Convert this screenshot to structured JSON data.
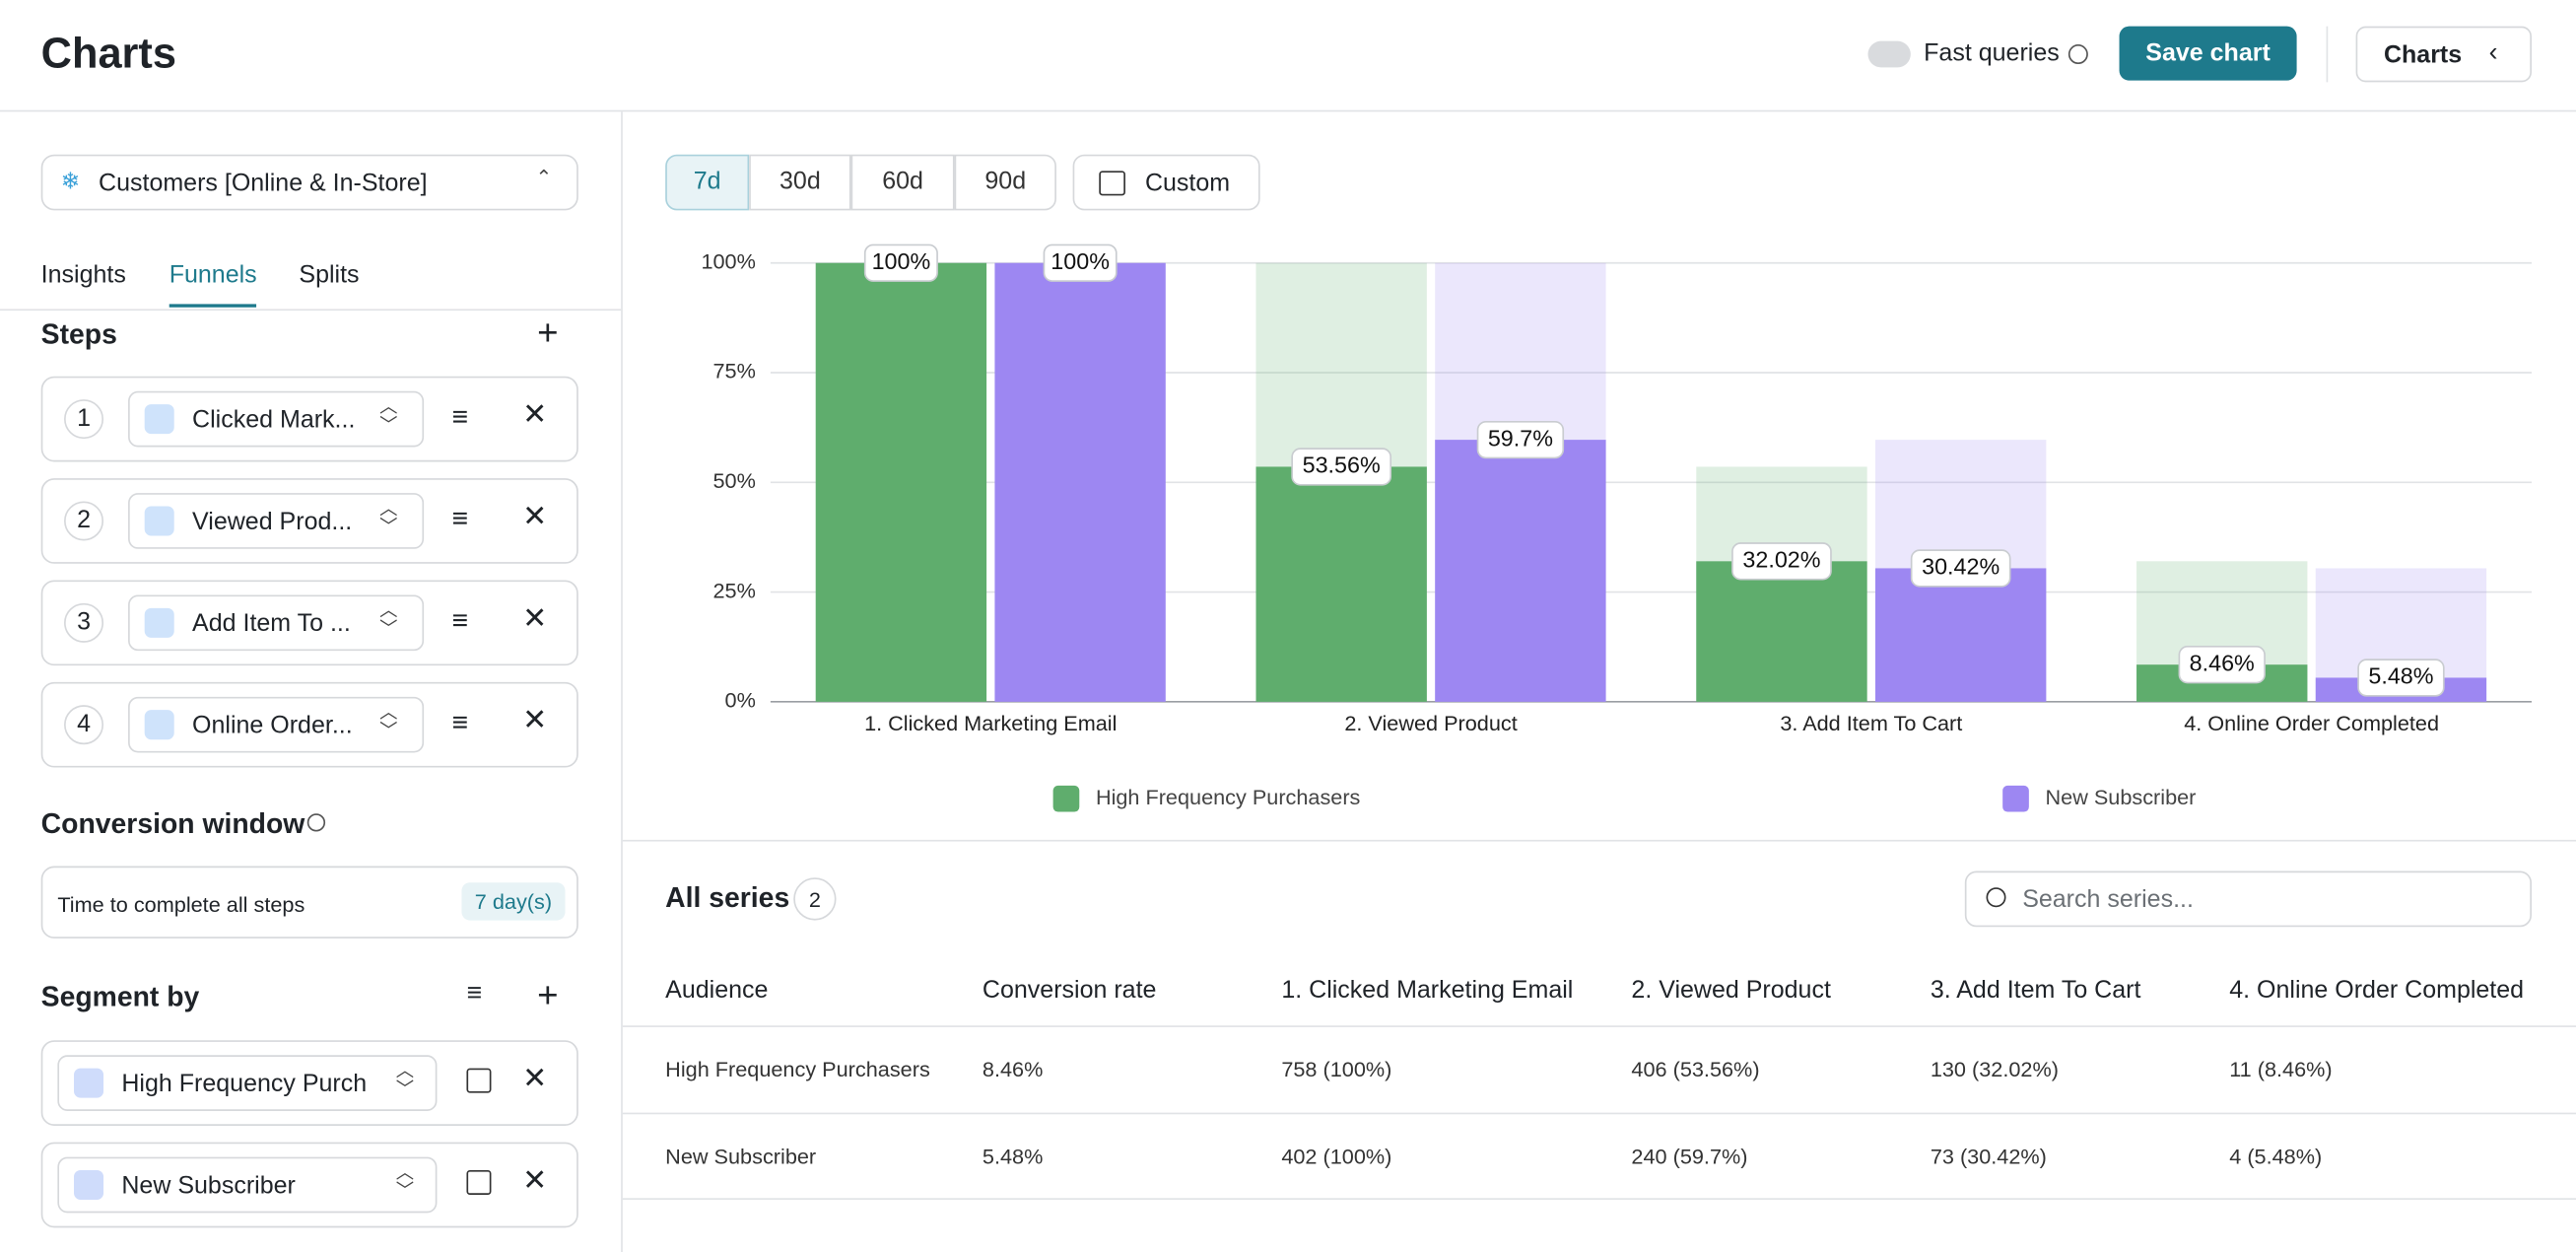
{
  "header": {
    "title": "Charts",
    "toggle_label": "Fast queries",
    "save_button": "Save chart",
    "charts_button": "Charts"
  },
  "sidebar": {
    "dataset": "Customers [Online & In-Store]",
    "tabs": [
      "Insights",
      "Funnels",
      "Splits"
    ],
    "steps_title": "Steps",
    "steps": [
      {
        "number": "1",
        "label": "Clicked Mark..."
      },
      {
        "number": "2",
        "label": "Viewed Prod..."
      },
      {
        "number": "3",
        "label": "Add Item To ..."
      },
      {
        "number": "4",
        "label": "Online Order..."
      }
    ],
    "conversion_title": "Conversion window",
    "conversion_text": "Time to complete all steps",
    "conversion_value": "7 day(s)",
    "segment_title": "Segment by",
    "segments": [
      "High Frequency Purch",
      "New Subscriber"
    ]
  },
  "ranges": [
    "7d",
    "30d",
    "60d",
    "90d"
  ],
  "custom_button": "Custom",
  "chart_data": {
    "type": "bar",
    "categories": [
      "1. Clicked Marketing Email",
      "2. Viewed Product",
      "3. Add Item To Cart",
      "4. Online Order Completed"
    ],
    "series": [
      {
        "name": "High Frequency Purchasers",
        "color": "#5fad6d",
        "values": [
          100,
          53.56,
          32.02,
          8.46
        ],
        "value_labels": [
          "100%",
          "53.56%",
          "32.02%",
          "8.46%"
        ]
      },
      {
        "name": "New Subscriber",
        "color": "#9d87f2",
        "values": [
          100,
          59.7,
          30.42,
          5.48
        ],
        "value_labels": [
          "100%",
          "59.7%",
          "30.42%",
          "5.48%"
        ]
      }
    ],
    "ylim": [
      0,
      100
    ],
    "yticks": [
      {
        "value": 0,
        "label": "0%"
      },
      {
        "value": 25,
        "label": "25%"
      },
      {
        "value": 50,
        "label": "50%"
      },
      {
        "value": 75,
        "label": "75%"
      },
      {
        "value": 100,
        "label": "100%"
      }
    ],
    "grid": true,
    "legend": "bottom"
  },
  "series_panel": {
    "title": "All series",
    "count": "2",
    "search_placeholder": "Search series..."
  },
  "table": {
    "columns": [
      "Audience",
      "Conversion rate",
      "1. Clicked Marketing Email",
      "2. Viewed Product",
      "3. Add Item To Cart",
      "4. Online Order Completed"
    ],
    "rows": [
      [
        "High Frequency Purchasers",
        "8.46%",
        "758 (100%)",
        "406 (53.56%)",
        "130 (32.02%)",
        "11 (8.46%)"
      ],
      [
        "New Subscriber",
        "5.48%",
        "402 (100%)",
        "240 (59.7%)",
        "73 (30.42%)",
        "4 (5.48%)"
      ]
    ]
  }
}
